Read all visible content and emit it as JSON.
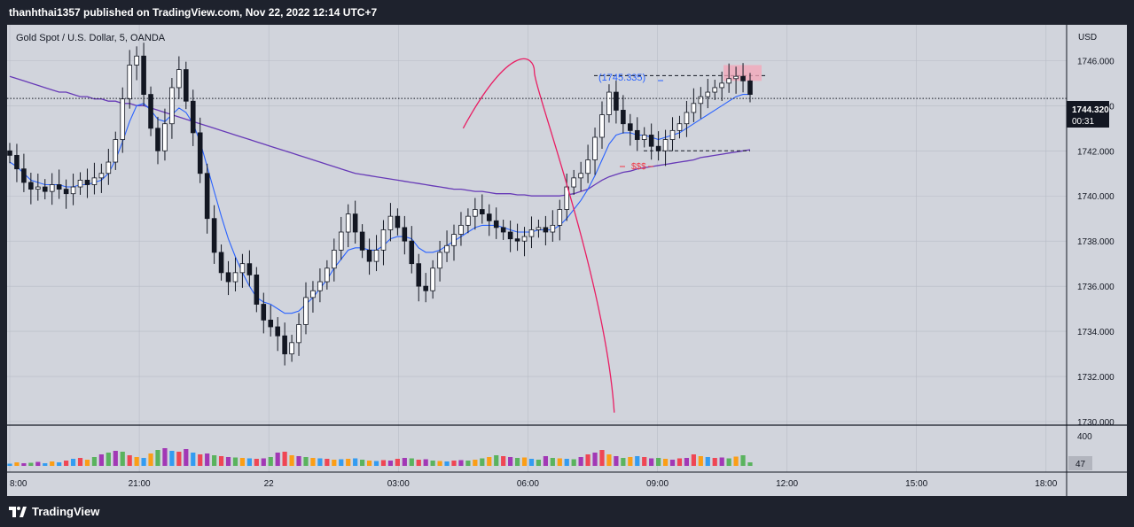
{
  "header": {
    "publisher_line": "thanhthai1357 published on TradingView.com, Nov 22, 2022 12:14 UTC+7"
  },
  "footer": {
    "brand": "TradingView"
  },
  "chart": {
    "symbol_title": "Gold Spot / U.S. Dollar, 5, OANDA",
    "currency": "USD",
    "price_label": "1744.320",
    "countdown_label": "00:31",
    "volume_axis_label": "400",
    "volume_value_label": "47",
    "annotation_high": "(1745.335)",
    "annotation_liquidity": "$$$"
  },
  "colors": {
    "background": "#d1d4dc",
    "grid": "#b8bcc6",
    "candle": "#131722",
    "ema_fast": "#2962ff",
    "ma_slow": "#673ab7",
    "projection": "#e91e63",
    "annotation_blue": "#2962ff",
    "annotation_red": "#f23645"
  },
  "chart_data": {
    "type": "candlestick",
    "price_axis": {
      "ticks": [
        "1746.000",
        "1744.000",
        "1742.000",
        "1740.000",
        "1738.000",
        "1736.000",
        "1734.000",
        "1732.000",
        "1730.000"
      ],
      "range": [
        1730,
        1746.8
      ]
    },
    "time_axis": {
      "ticks": [
        "8:00",
        "21:00",
        "22",
        "03:00",
        "06:00",
        "09:00",
        "12:00",
        "15:00",
        "18:00"
      ]
    },
    "time_range_hours": [
      17.9,
      20.6
    ],
    "close": [
      1741.8,
      1741.2,
      1740.6,
      1740.3,
      1740.4,
      1740.2,
      1740.5,
      1740.3,
      1740.1,
      1740.4,
      1740.7,
      1740.5,
      1740.8,
      1741.0,
      1741.5,
      1742.5,
      1744.3,
      1745.8,
      1746.2,
      1744.5,
      1743.0,
      1742.0,
      1743.2,
      1744.8,
      1745.6,
      1744.2,
      1742.8,
      1741.0,
      1739.0,
      1737.5,
      1736.6,
      1736.2,
      1736.6,
      1737.0,
      1736.5,
      1735.2,
      1734.5,
      1734.2,
      1733.8,
      1733.0,
      1733.5,
      1734.3,
      1735.5,
      1735.8,
      1736.2,
      1736.8,
      1737.6,
      1738.4,
      1739.2,
      1738.4,
      1737.6,
      1737.1,
      1737.6,
      1738.5,
      1739.1,
      1738.6,
      1738.0,
      1737.0,
      1736.0,
      1735.8,
      1736.8,
      1737.5,
      1737.8,
      1738.3,
      1738.7,
      1739.1,
      1739.4,
      1739.2,
      1738.9,
      1738.6,
      1738.4,
      1738.1,
      1738.0,
      1738.2,
      1738.5,
      1738.6,
      1738.4,
      1738.7,
      1739.4,
      1740.4,
      1740.8,
      1741.0,
      1741.6,
      1742.6,
      1743.6,
      1744.6,
      1743.8,
      1743.2,
      1742.9,
      1742.5,
      1742.7,
      1742.2,
      1742.0,
      1742.5,
      1742.9,
      1743.2,
      1743.7,
      1744.1,
      1744.4,
      1744.6,
      1744.8,
      1745.0,
      1745.2,
      1745.3,
      1745.1,
      1744.5
    ],
    "ema_fast": [
      1741.5,
      1741.3,
      1741.0,
      1740.7,
      1740.6,
      1740.5,
      1740.5,
      1740.5,
      1740.4,
      1740.4,
      1740.5,
      1740.5,
      1740.6,
      1740.7,
      1741.0,
      1741.6,
      1742.4,
      1743.3,
      1744.0,
      1744.1,
      1743.8,
      1743.4,
      1743.3,
      1743.6,
      1743.9,
      1743.7,
      1743.2,
      1742.4,
      1741.3,
      1740.2,
      1739.1,
      1738.1,
      1737.3,
      1736.6,
      1736.0,
      1735.5,
      1735.3,
      1735.2,
      1735.0,
      1734.8,
      1734.8,
      1734.9,
      1735.2,
      1735.5,
      1735.9,
      1736.3,
      1736.8,
      1737.2,
      1737.6,
      1737.7,
      1737.7,
      1737.6,
      1737.6,
      1737.8,
      1738.1,
      1738.2,
      1738.2,
      1738.1,
      1737.7,
      1737.5,
      1737.5,
      1737.6,
      1737.8,
      1738.0,
      1738.2,
      1738.4,
      1738.6,
      1738.7,
      1738.7,
      1738.7,
      1738.6,
      1738.5,
      1738.4,
      1738.4,
      1738.4,
      1738.5,
      1738.5,
      1738.5,
      1738.7,
      1739.0,
      1739.4,
      1739.8,
      1740.3,
      1740.9,
      1741.6,
      1742.3,
      1742.7,
      1742.8,
      1742.8,
      1742.7,
      1742.7,
      1742.6,
      1742.5,
      1742.6,
      1742.7,
      1742.8,
      1743.0,
      1743.2,
      1743.4,
      1743.6,
      1743.8,
      1744.0,
      1744.2,
      1744.4,
      1744.5,
      1744.5
    ],
    "ma_slow": [
      1745.3,
      1745.2,
      1745.1,
      1745.0,
      1744.9,
      1744.8,
      1744.7,
      1744.6,
      1744.6,
      1744.5,
      1744.4,
      1744.4,
      1744.3,
      1744.3,
      1744.2,
      1744.2,
      1744.1,
      1744.1,
      1744.0,
      1744.0,
      1743.9,
      1743.8,
      1743.7,
      1743.6,
      1743.5,
      1743.4,
      1743.3,
      1743.2,
      1743.1,
      1743.0,
      1742.9,
      1742.8,
      1742.7,
      1742.6,
      1742.5,
      1742.4,
      1742.3,
      1742.2,
      1742.1,
      1742.0,
      1741.9,
      1741.8,
      1741.7,
      1741.6,
      1741.5,
      1741.4,
      1741.3,
      1741.2,
      1741.1,
      1741.0,
      1740.95,
      1740.9,
      1740.85,
      1740.8,
      1740.75,
      1740.7,
      1740.65,
      1740.6,
      1740.55,
      1740.5,
      1740.45,
      1740.4,
      1740.35,
      1740.3,
      1740.3,
      1740.25,
      1740.2,
      1740.2,
      1740.15,
      1740.1,
      1740.1,
      1740.1,
      1740.05,
      1740.05,
      1740.0,
      1740.0,
      1740.0,
      1740.0,
      1740.0,
      1740.05,
      1740.1,
      1740.2,
      1740.3,
      1740.5,
      1740.7,
      1740.85,
      1740.95,
      1741.05,
      1741.1,
      1741.2,
      1741.25,
      1741.3,
      1741.35,
      1741.4,
      1741.45,
      1741.5,
      1741.55,
      1741.6,
      1741.7,
      1741.75,
      1741.8,
      1741.85,
      1741.9,
      1741.95,
      1742.0,
      1742.05
    ],
    "volume": [
      25,
      40,
      30,
      35,
      45,
      30,
      50,
      40,
      60,
      80,
      90,
      70,
      100,
      130,
      150,
      170,
      160,
      120,
      100,
      90,
      140,
      180,
      200,
      170,
      160,
      190,
      150,
      130,
      140,
      120,
      110,
      100,
      95,
      90,
      85,
      80,
      85,
      100,
      150,
      160,
      120,
      110,
      100,
      90,
      85,
      80,
      70,
      75,
      80,
      85,
      70,
      60,
      55,
      65,
      60,
      80,
      90,
      85,
      70,
      75,
      60,
      55,
      50,
      60,
      65,
      60,
      70,
      85,
      100,
      120,
      110,
      100,
      90,
      95,
      80,
      70,
      110,
      90,
      85,
      80,
      75,
      100,
      130,
      150,
      180,
      130,
      110,
      90,
      100,
      110,
      100,
      85,
      90,
      80,
      70,
      85,
      90,
      130,
      110,
      100,
      90,
      95,
      85,
      105,
      120,
      40
    ],
    "projection_curve": [
      [
        1743.0,
        10.5
      ],
      [
        1745.3,
        11.6
      ],
      [
        1745.5,
        12.15
      ],
      [
        1730.4,
        14.0
      ]
    ],
    "range_high": 1745.335,
    "range_low": 1742.0,
    "supply_zone": [
      1745.1,
      1745.8
    ],
    "last_price": 1744.32
  }
}
